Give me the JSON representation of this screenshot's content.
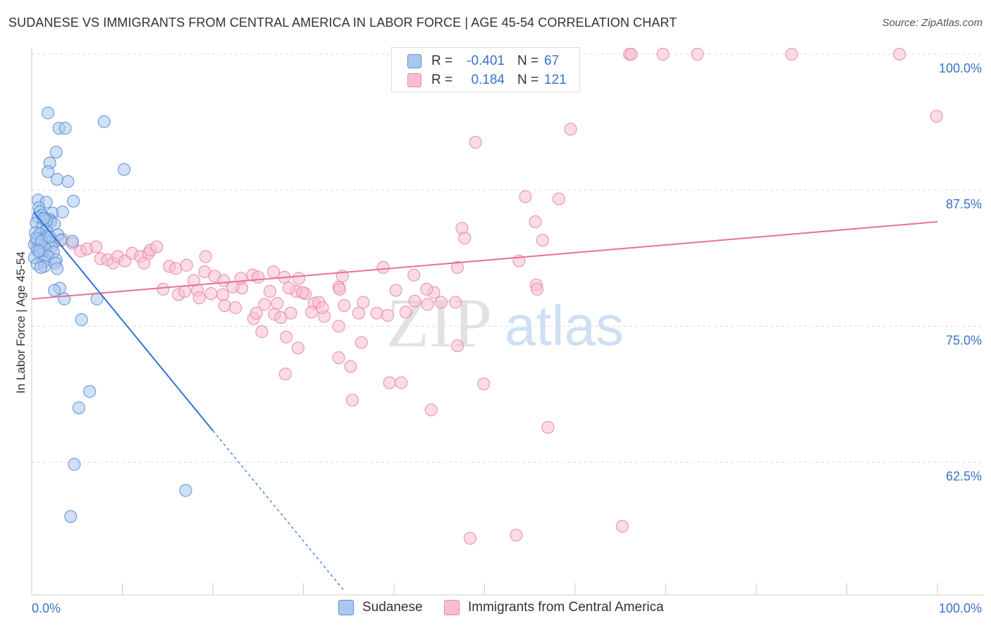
{
  "title": "SUDANESE VS IMMIGRANTS FROM CENTRAL AMERICA IN LABOR FORCE | AGE 45-54 CORRELATION CHART",
  "source": "Source: ZipAtlas.com",
  "watermark": {
    "zip": "ZIP",
    "atlas": "atlas"
  },
  "legend": {
    "r_label": "R =",
    "n_label": "N =",
    "rows": [
      {
        "r": "-0.401",
        "n": "67"
      },
      {
        "r": "0.184",
        "n": "121"
      }
    ]
  },
  "colors": {
    "sudanese_fill": "#aac8ee",
    "sudanese_stroke": "#5b8fd6",
    "sudanese_line": "#2f72d6",
    "immigrants_fill": "#f7bdd0",
    "immigrants_stroke": "#e88aaa",
    "immigrants_line": "#e87099",
    "tick_label": "#3a72c8"
  },
  "chart_data": {
    "type": "scatter",
    "title": "SUDANESE VS IMMIGRANTS FROM CENTRAL AMERICA IN LABOR FORCE | AGE 45-54 CORRELATION CHART",
    "xlabel": "",
    "ylabel": "In Labor Force | Age 45-54",
    "xlim": [
      0,
      100
    ],
    "ylim": [
      51.5,
      100.5
    ],
    "x_tick_labels": [
      "0.0%",
      "100.0%"
    ],
    "y_ticks": [
      {
        "value": 100,
        "label": "100.0%"
      },
      {
        "value": 87.5,
        "label": "87.5%"
      },
      {
        "value": 75,
        "label": "75.0%"
      },
      {
        "value": 62.5,
        "label": "62.5%"
      }
    ],
    "grid": true,
    "series": [
      {
        "name": "Sudanese",
        "r": -0.401,
        "n": 67,
        "trend": {
          "x0": 0.2,
          "y0": 85.5,
          "x1": 20,
          "y1": 65.4,
          "x_dash_end": 34.5
        },
        "points": [
          [
            1.8,
            94.6
          ],
          [
            3.0,
            93.2
          ],
          [
            3.7,
            93.2
          ],
          [
            8.0,
            93.8
          ],
          [
            2.7,
            91.0
          ],
          [
            2.0,
            90.0
          ],
          [
            1.8,
            89.2
          ],
          [
            10.2,
            89.4
          ],
          [
            2.8,
            88.5
          ],
          [
            4.0,
            88.3
          ],
          [
            0.7,
            86.6
          ],
          [
            1.6,
            86.4
          ],
          [
            4.6,
            86.5
          ],
          [
            0.8,
            85.9
          ],
          [
            0.9,
            85.5
          ],
          [
            1.1,
            85.2
          ],
          [
            2.3,
            85.4
          ],
          [
            3.4,
            85.5
          ],
          [
            0.7,
            85.0
          ],
          [
            1.5,
            84.9
          ],
          [
            2.0,
            84.8
          ],
          [
            2.1,
            84.6
          ],
          [
            0.5,
            84.5
          ],
          [
            1.2,
            84.2
          ],
          [
            2.5,
            84.4
          ],
          [
            1.6,
            83.8
          ],
          [
            0.4,
            83.6
          ],
          [
            0.9,
            83.5
          ],
          [
            1.7,
            83.3
          ],
          [
            2.9,
            83.4
          ],
          [
            1.4,
            83.0
          ],
          [
            0.6,
            82.9
          ],
          [
            1.9,
            82.7
          ],
          [
            3.2,
            82.9
          ],
          [
            4.5,
            82.8
          ],
          [
            0.3,
            82.5
          ],
          [
            1.0,
            82.4
          ],
          [
            2.2,
            82.3
          ],
          [
            1.5,
            82.1
          ],
          [
            0.6,
            82.0
          ],
          [
            2.4,
            81.8
          ],
          [
            0.9,
            81.6
          ],
          [
            1.8,
            81.4
          ],
          [
            0.3,
            81.3
          ],
          [
            2.7,
            81.1
          ],
          [
            1.3,
            80.9
          ],
          [
            0.6,
            80.7
          ],
          [
            1.4,
            80.5
          ],
          [
            2.6,
            80.8
          ],
          [
            1.0,
            80.4
          ],
          [
            2.8,
            80.3
          ],
          [
            3.1,
            78.5
          ],
          [
            2.5,
            78.3
          ],
          [
            3.6,
            77.5
          ],
          [
            7.2,
            77.5
          ],
          [
            5.5,
            75.6
          ],
          [
            6.4,
            69.0
          ],
          [
            5.2,
            67.5
          ],
          [
            4.7,
            62.3
          ],
          [
            17.0,
            59.9
          ],
          [
            4.3,
            57.5
          ],
          [
            0.5,
            83.1
          ],
          [
            1.1,
            82.8
          ],
          [
            0.8,
            81.9
          ],
          [
            2.0,
            83.2
          ],
          [
            1.6,
            84.7
          ],
          [
            1.3,
            84.9
          ]
        ]
      },
      {
        "name": "Immigrants from Central America",
        "r": 0.184,
        "n": 121,
        "trend": {
          "x0": 0,
          "y0": 77.5,
          "x1": 100,
          "y1": 84.6
        },
        "points": [
          [
            47.3,
            100
          ],
          [
            49.5,
            100
          ],
          [
            59.2,
            100
          ],
          [
            66.0,
            100
          ],
          [
            66.2,
            100
          ],
          [
            69.7,
            100
          ],
          [
            73.5,
            100
          ],
          [
            83.9,
            100
          ],
          [
            95.8,
            100
          ],
          [
            99.9,
            94.3
          ],
          [
            59.5,
            93.1
          ],
          [
            49.0,
            91.9
          ],
          [
            54.5,
            86.9
          ],
          [
            58.2,
            86.7
          ],
          [
            55.6,
            84.6
          ],
          [
            47.5,
            84.0
          ],
          [
            47.8,
            83.1
          ],
          [
            56.4,
            82.9
          ],
          [
            53.8,
            81.0
          ],
          [
            47.0,
            80.4
          ],
          [
            38.8,
            80.4
          ],
          [
            34.3,
            79.6
          ],
          [
            42.2,
            79.7
          ],
          [
            55.7,
            78.8
          ],
          [
            55.8,
            78.4
          ],
          [
            33.9,
            78.6
          ],
          [
            29.2,
            78.2
          ],
          [
            28.4,
            78.5
          ],
          [
            23.2,
            78.5
          ],
          [
            21.1,
            77.9
          ],
          [
            21.3,
            76.9
          ],
          [
            25.7,
            77.0
          ],
          [
            27.1,
            77.1
          ],
          [
            31.2,
            77.1
          ],
          [
            34.5,
            76.9
          ],
          [
            36.6,
            77.2
          ],
          [
            36.1,
            76.2
          ],
          [
            38.1,
            76.2
          ],
          [
            39.3,
            76.0
          ],
          [
            42.3,
            77.3
          ],
          [
            43.7,
            77.0
          ],
          [
            41.3,
            76.3
          ],
          [
            22.5,
            76.7
          ],
          [
            24.5,
            75.7
          ],
          [
            24.8,
            76.2
          ],
          [
            26.8,
            76.1
          ],
          [
            27.5,
            75.8
          ],
          [
            28.6,
            76.2
          ],
          [
            32.3,
            75.9
          ],
          [
            33.9,
            75.0
          ],
          [
            25.4,
            74.5
          ],
          [
            28.1,
            74.0
          ],
          [
            29.4,
            73.0
          ],
          [
            36.4,
            73.5
          ],
          [
            33.9,
            72.1
          ],
          [
            47.0,
            73.2
          ],
          [
            28.0,
            70.6
          ],
          [
            35.2,
            71.3
          ],
          [
            39.5,
            69.8
          ],
          [
            40.8,
            69.8
          ],
          [
            49.9,
            69.7
          ],
          [
            35.4,
            68.2
          ],
          [
            44.1,
            67.3
          ],
          [
            57.0,
            65.7
          ],
          [
            48.4,
            55.5
          ],
          [
            53.5,
            55.8
          ],
          [
            65.2,
            56.6
          ],
          [
            0.5,
            82.7
          ],
          [
            1.0,
            82.0
          ],
          [
            1.8,
            82.4
          ],
          [
            2.5,
            82.7
          ],
          [
            3.4,
            83.0
          ],
          [
            4.5,
            82.6
          ],
          [
            5.4,
            81.9
          ],
          [
            6.1,
            82.1
          ],
          [
            7.1,
            82.3
          ],
          [
            7.6,
            81.2
          ],
          [
            8.4,
            81.1
          ],
          [
            9.0,
            80.8
          ],
          [
            9.5,
            81.4
          ],
          [
            10.3,
            81.0
          ],
          [
            11.1,
            81.7
          ],
          [
            12.0,
            81.4
          ],
          [
            12.9,
            81.7
          ],
          [
            13.1,
            82.0
          ],
          [
            12.4,
            80.8
          ],
          [
            13.8,
            82.3
          ],
          [
            15.2,
            80.5
          ],
          [
            15.9,
            80.3
          ],
          [
            17.1,
            80.6
          ],
          [
            17.9,
            79.2
          ],
          [
            19.1,
            80.0
          ],
          [
            20.2,
            79.6
          ],
          [
            21.2,
            79.2
          ],
          [
            23.1,
            79.4
          ],
          [
            24.4,
            79.7
          ],
          [
            25.0,
            79.5
          ],
          [
            26.7,
            80.0
          ],
          [
            27.9,
            79.5
          ],
          [
            29.5,
            79.4
          ],
          [
            30.2,
            78.0
          ],
          [
            19.2,
            81.4
          ],
          [
            16.2,
            77.9
          ],
          [
            18.3,
            78.3
          ],
          [
            14.5,
            78.4
          ],
          [
            16.9,
            78.2
          ],
          [
            22.2,
            78.6
          ],
          [
            19.8,
            78.0
          ],
          [
            31.7,
            77.2
          ],
          [
            30.9,
            76.3
          ],
          [
            34.0,
            78.4
          ],
          [
            40.2,
            78.3
          ],
          [
            44.4,
            78.1
          ],
          [
            29.9,
            78.1
          ],
          [
            32.1,
            76.7
          ],
          [
            43.6,
            78.4
          ],
          [
            45.2,
            77.2
          ],
          [
            46.8,
            77.2
          ],
          [
            26.3,
            78.2
          ],
          [
            18.5,
            77.6
          ],
          [
            1.5,
            81.0
          ]
        ]
      }
    ]
  },
  "bottom_legend": {
    "items": [
      "Sudanese",
      "Immigrants from Central America"
    ]
  }
}
